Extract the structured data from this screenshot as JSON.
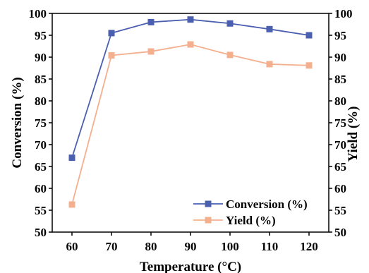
{
  "chart_data": {
    "type": "line",
    "xlabel": "Temperature (°C)",
    "ylabel_left": "Conversion (%)",
    "ylabel_right": "Yield (%)",
    "x": [
      60,
      70,
      80,
      90,
      100,
      110,
      120
    ],
    "xlim": [
      55,
      125
    ],
    "ylim": [
      50,
      100
    ],
    "y_ticks": [
      50,
      55,
      60,
      65,
      70,
      75,
      80,
      85,
      90,
      95,
      100
    ],
    "grid": false,
    "legend_position": "bottom-right",
    "series": [
      {
        "name": "Conversion (%)",
        "color": "#4a5fb0",
        "axis": "left",
        "values": [
          67.0,
          95.5,
          98.0,
          98.6,
          97.7,
          96.4,
          95.0
        ]
      },
      {
        "name": "Yield (%)",
        "color": "#f4b08e",
        "axis": "right",
        "values": [
          56.3,
          90.4,
          91.3,
          92.9,
          90.5,
          88.4,
          88.1
        ]
      }
    ]
  }
}
